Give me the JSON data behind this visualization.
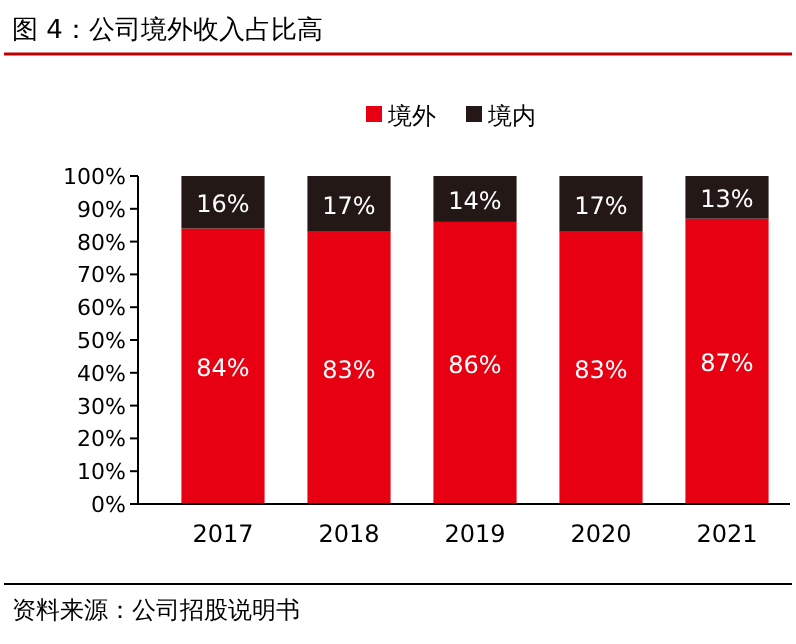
{
  "chart_data": {
    "type": "bar",
    "title": "图 4：公司境外收入占比高",
    "stacked": true,
    "legend": "top",
    "categories": [
      "2017",
      "2018",
      "2019",
      "2020",
      "2021"
    ],
    "series": [
      {
        "name": "境外",
        "color": "#e60012",
        "values": [
          84,
          83,
          86,
          83,
          87
        ],
        "value_labels": [
          "84%",
          "83%",
          "86%",
          "83%",
          "87%"
        ]
      },
      {
        "name": "境内",
        "color": "#231815",
        "values": [
          16,
          17,
          14,
          17,
          13
        ],
        "value_labels": [
          "16%",
          "17%",
          "14%",
          "17%",
          "13%"
        ]
      }
    ],
    "ylim": [
      0,
      100
    ],
    "yticks": [
      {
        "value": 0,
        "label": "0%"
      },
      {
        "value": 10,
        "label": "10%"
      },
      {
        "value": 20,
        "label": "20%"
      },
      {
        "value": 30,
        "label": "30%"
      },
      {
        "value": 40,
        "label": "40%"
      },
      {
        "value": 50,
        "label": "50%"
      },
      {
        "value": 60,
        "label": "60%"
      },
      {
        "value": 70,
        "label": "70%"
      },
      {
        "value": 80,
        "label": "80%"
      },
      {
        "value": 90,
        "label": "90%"
      },
      {
        "value": 100,
        "label": "100%"
      }
    ],
    "annotations": [
      "资料来源：公司招股说明书"
    ]
  }
}
